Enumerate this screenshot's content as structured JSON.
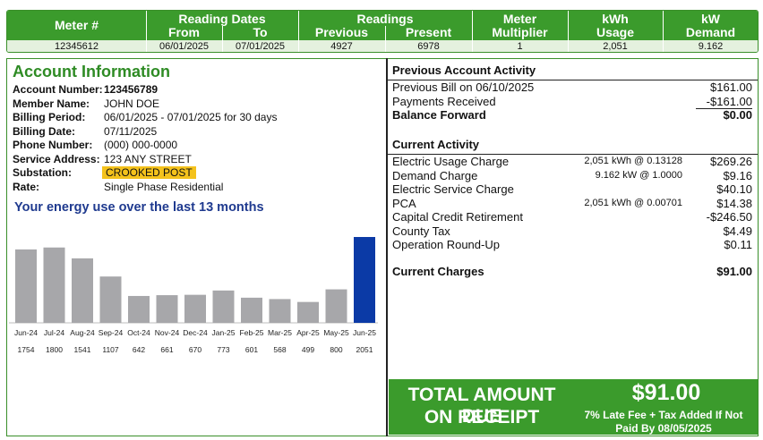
{
  "meter_table": {
    "headers": {
      "meter": "Meter #",
      "reading_dates": "Reading Dates",
      "from": "From",
      "to": "To",
      "readings": "Readings",
      "previous": "Previous",
      "present": "Present",
      "multiplier_1": "Meter",
      "multiplier_2": "Multiplier",
      "kwh_1": "kWh",
      "kwh_2": "Usage",
      "kw_1": "kW",
      "kw_2": "Demand"
    },
    "values": {
      "meter": "12345612",
      "from": "06/01/2025",
      "to": "07/01/2025",
      "previous": "4927",
      "present": "6978",
      "multiplier": "1",
      "kwh_usage": "2,051",
      "kw_demand": "9.162"
    }
  },
  "account": {
    "title": "Account Information",
    "rows": [
      {
        "label": "Account Number:",
        "value": "123456789",
        "bold": true
      },
      {
        "label": "Member Name:",
        "value": "JOHN DOE"
      },
      {
        "label": "Billing Period:",
        "value": "06/01/2025 - 07/01/2025 for 30 days"
      },
      {
        "label": "Billing Date:",
        "value": "07/11/2025"
      },
      {
        "label": "Phone Number:",
        "value": "(000) 000-0000"
      },
      {
        "label": "Service Address:",
        "value": "123 ANY STREET"
      },
      {
        "label": "Substation:",
        "value": "CROOKED POST",
        "highlight": true
      },
      {
        "label": "Rate:",
        "value": "Single Phase Residential"
      }
    ]
  },
  "energy_title": "Your energy use over the last 13 months",
  "colors": {
    "green": "#3b9b2c",
    "bar_gray": "#a7a7aa",
    "bar_current": "#0b3aa6",
    "highlight": "#f4c21c"
  },
  "chart_data": {
    "type": "bar",
    "categories": [
      "Jun-24",
      "Jul-24",
      "Aug-24",
      "Sep-24",
      "Oct-24",
      "Nov-24",
      "Dec-24",
      "Jan-25",
      "Feb-25",
      "Mar-25",
      "Apr-25",
      "May-25",
      "Jun-25"
    ],
    "values": [
      1754,
      1800,
      1541,
      1107,
      642,
      661,
      670,
      773,
      601,
      568,
      499,
      800,
      2051
    ],
    "value_labels": [
      "1754",
      "1800",
      "1541",
      "1107",
      "642",
      "661",
      "670",
      "773",
      "601",
      "568",
      "499",
      "800",
      "2051"
    ],
    "highlight_index": 12,
    "ylim": [
      0,
      2051
    ],
    "grid": false,
    "legend": "none"
  },
  "previous_activity": {
    "title": "Previous Account Activity",
    "rows": [
      {
        "label": "Previous Bill on 06/10/2025",
        "amount": "$161.00"
      },
      {
        "label": "Payments Received",
        "amount": "-$161.00",
        "underline": true
      },
      {
        "label": "Balance Forward",
        "amount": "$0.00",
        "bold": true
      }
    ]
  },
  "current_activity": {
    "title": "Current Activity",
    "rows": [
      {
        "label": "Electric Usage Charge",
        "detail": "2,051 kWh  @ 0.13128",
        "amount": "$269.26"
      },
      {
        "label": "Demand Charge",
        "detail": "9.162 kW  @ 1.0000",
        "amount": "$9.16"
      },
      {
        "label": "Electric Service Charge",
        "detail": "",
        "amount": "$40.10"
      },
      {
        "label": "PCA",
        "detail": "2,051 kWh  @ 0.00701",
        "amount": "$14.38"
      },
      {
        "label": "Capital Credit Retirement",
        "detail": "",
        "amount": "-$246.50"
      },
      {
        "label": "County Tax",
        "detail": "",
        "amount": "$4.49"
      },
      {
        "label": "Operation Round-Up",
        "detail": "",
        "amount": "$0.11"
      }
    ],
    "current_charges_label": "Current Charges",
    "current_charges_amount": "$91.00"
  },
  "total": {
    "line1": "TOTAL AMOUNT DUE",
    "line2": "ON RECEIPT",
    "amount": "$91.00",
    "late_line1": "7% Late Fee + Tax Added If Not",
    "late_line2": "Paid By 08/05/2025"
  }
}
